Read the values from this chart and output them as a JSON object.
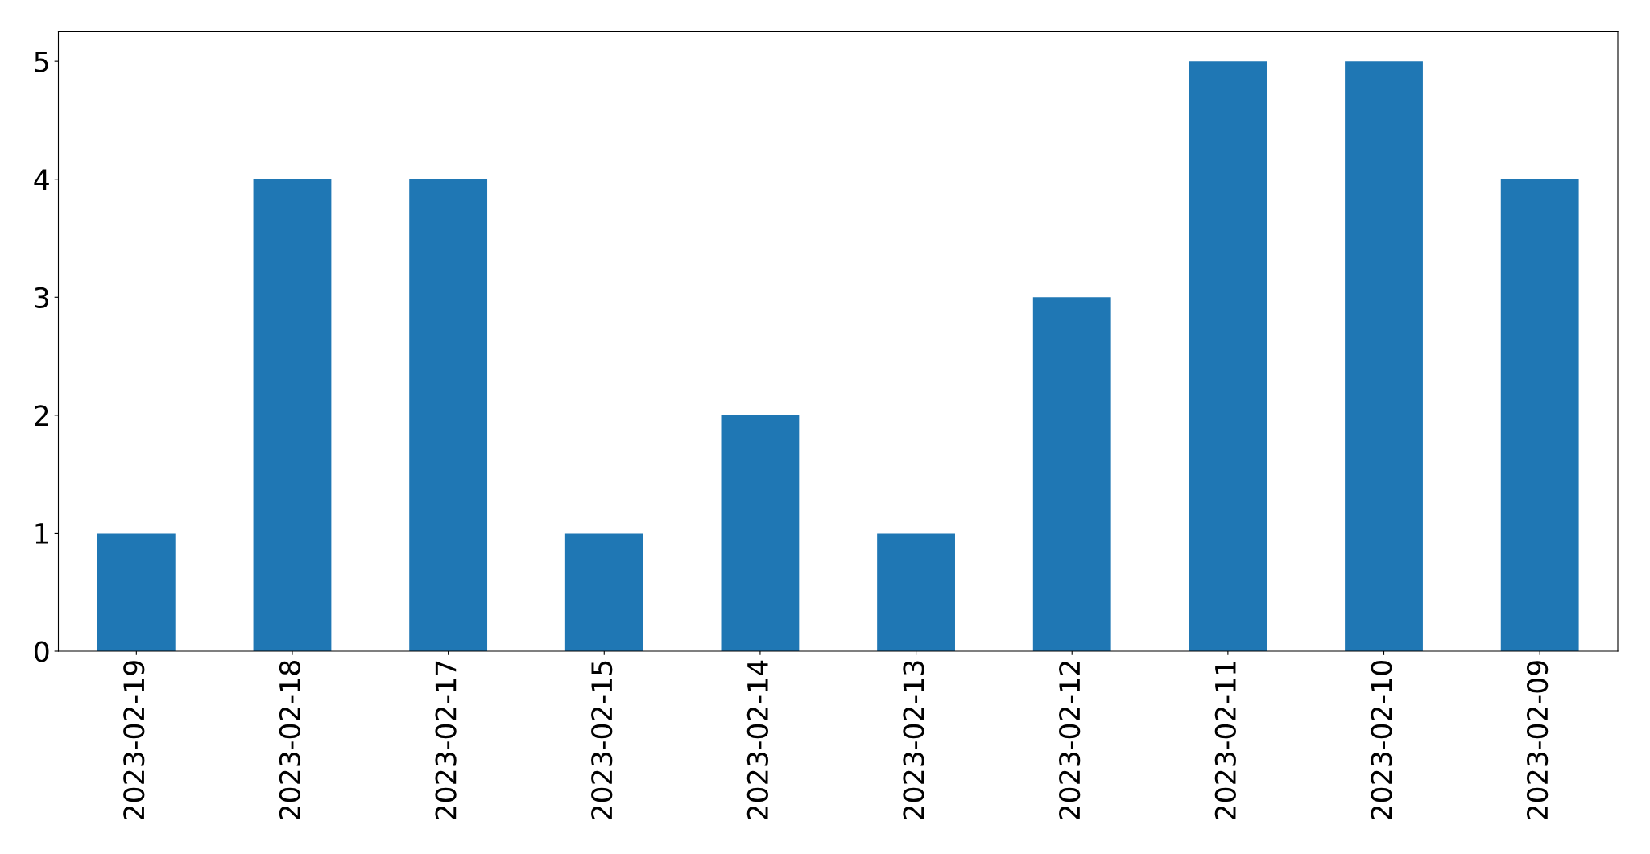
{
  "chart_data": {
    "type": "bar",
    "categories": [
      "2023-02-19",
      "2023-02-18",
      "2023-02-17",
      "2023-02-15",
      "2023-02-14",
      "2023-02-13",
      "2023-02-12",
      "2023-02-11",
      "2023-02-10",
      "2023-02-09"
    ],
    "values": [
      1,
      4,
      4,
      1,
      2,
      1,
      3,
      5,
      5,
      4
    ],
    "color": "#1f77b4",
    "ylim": [
      0,
      5.25
    ],
    "yticks": [
      0,
      1,
      2,
      3,
      4,
      5
    ],
    "grid": false
  }
}
